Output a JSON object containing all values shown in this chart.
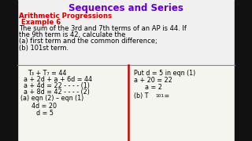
{
  "title": "Sequences and Series",
  "subtitle": "Arithmetic Progressions",
  "example": " Example 6",
  "problem_line1": "The sum of the 3rd and 7th terms of an AP is 44. If",
  "problem_line2": "the 9th term is 42, calculate the",
  "problem_line3": "(a) first term and the common difference;",
  "problem_line4": "(b) 101st term.",
  "left_lines": [
    "T₃ + T₇ = 44",
    "a + 2d + a + 6d = 44",
    "a + 4d = 22 - - - - (1)",
    "a + 8d = 42 - - - - (2)",
    "(a) eqn (2) – eqn (1)",
    "4d = 20",
    "d = 5"
  ],
  "right_line1": "Put d = 5 in eqn (1)",
  "right_line2": "a + 20 = 22",
  "right_line3": "a = 2",
  "right_line4a": "(b) T",
  "right_line4b": "101",
  "right_line4c": " =",
  "bg_color": "#e8e8e8",
  "title_color": "#6600cc",
  "subtitle_color": "#cc0000",
  "example_color": "#cc0000",
  "problem_color": "#000000",
  "solution_color": "#000000",
  "divider_v_color": "#cc0000",
  "divider_h_color": "#888888",
  "black_bar_color": "#111111",
  "watermark_color": "#cccccc"
}
